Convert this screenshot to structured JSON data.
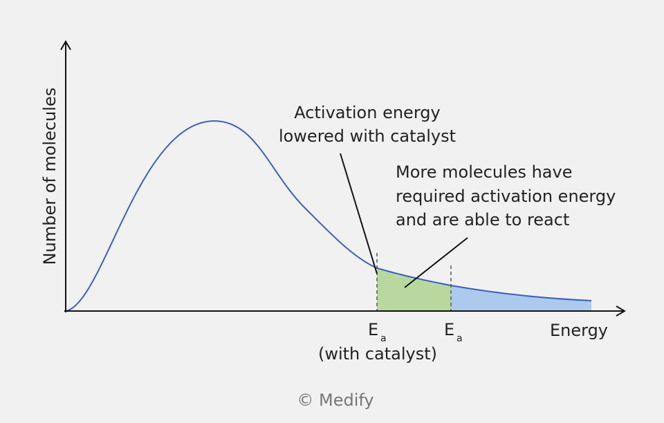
{
  "axes": {
    "y_label": "Number of molecules",
    "x_label": "Energy"
  },
  "annotations": [
    {
      "lines": [
        "Activation energy",
        "lowered with catalyst"
      ]
    },
    {
      "lines": [
        "More molecules have",
        "required activation energy",
        "and are able to react"
      ]
    }
  ],
  "markers": [
    {
      "symbol": "E",
      "subscript": "a",
      "note": "(with catalyst)"
    },
    {
      "symbol": "E",
      "subscript": "a"
    }
  ],
  "copyright": "© Medify"
}
